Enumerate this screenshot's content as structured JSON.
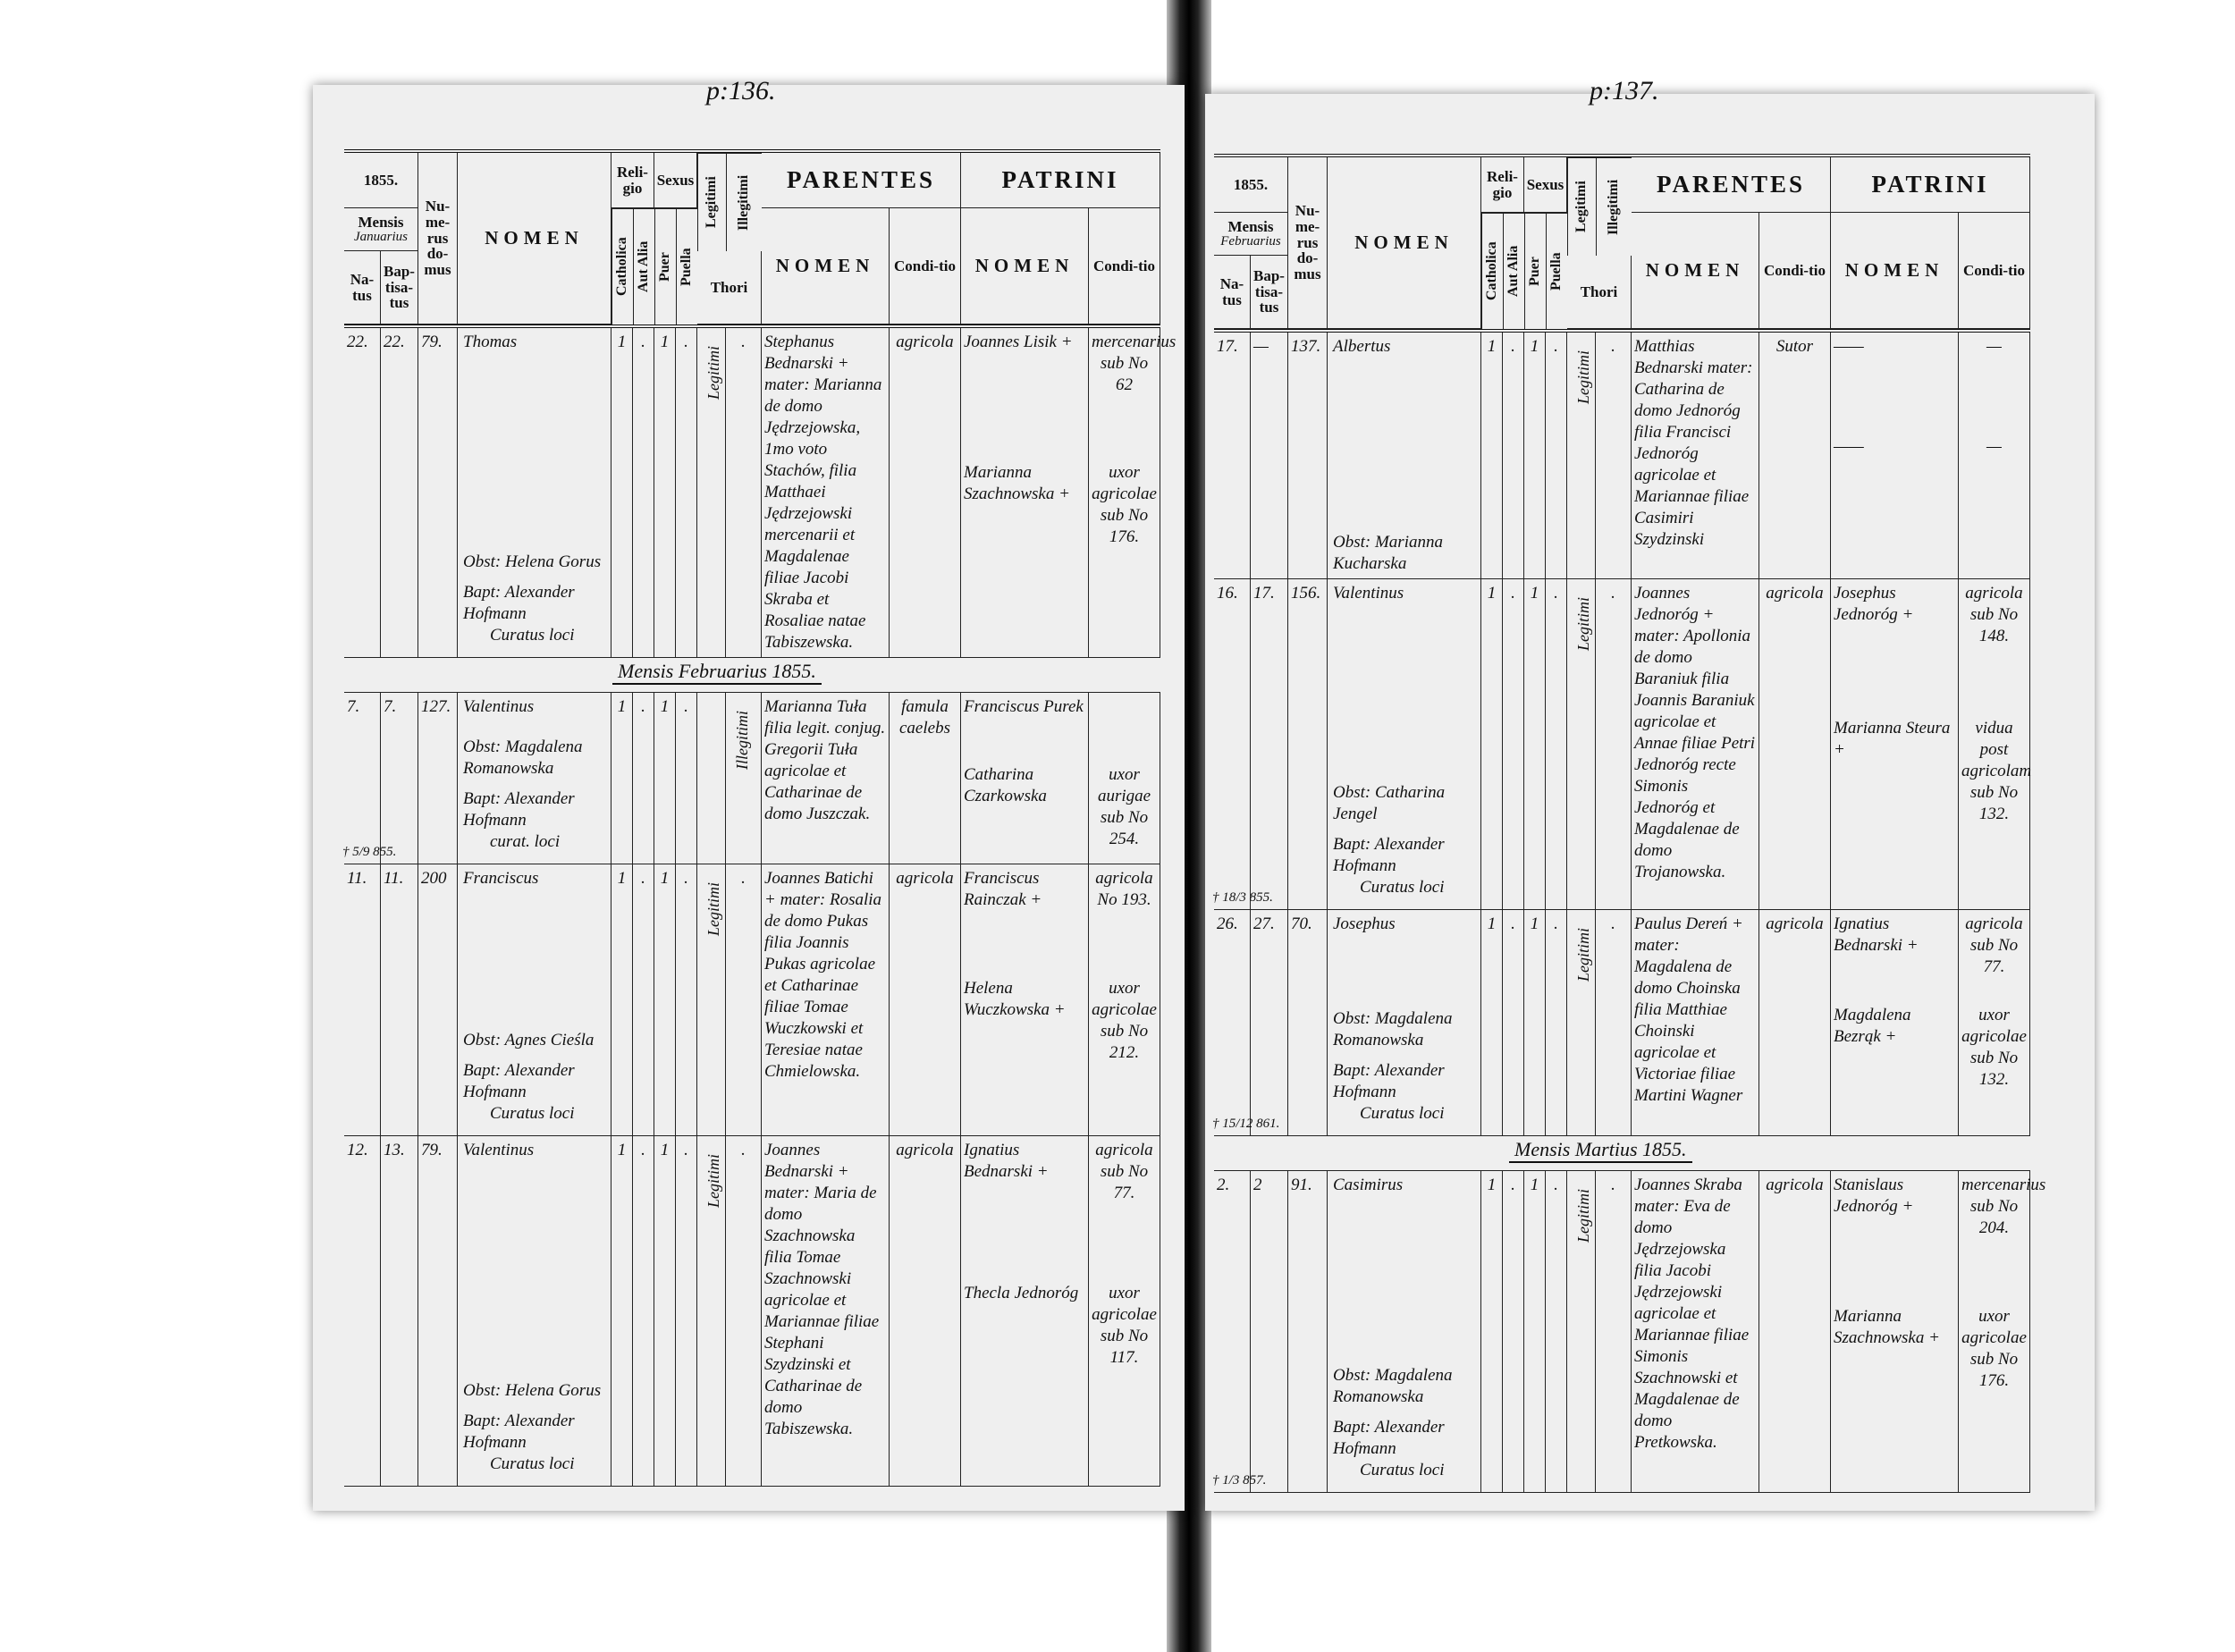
{
  "header": {
    "year": "1855.",
    "numerus": "Nu-me-rus do-mus",
    "nomen": "NOMEN",
    "religio": "Reli-gio",
    "catholica": "Catholica",
    "aut_alia": "Aut Alia",
    "sexus": "Sexus",
    "puer": "Puer",
    "puella": "Puella",
    "legitimi": "Legitimi",
    "illegitimi": "Illegitimi",
    "thori": "Thori",
    "parentes": "PARENTES",
    "patrini": "PATRINI",
    "sub_nomen": "NOMEN",
    "conditio": "Condi-tio",
    "mensis": "Mensis",
    "natus": "Na-tus",
    "baptisatus": "Bap-tisa-tus"
  },
  "pages": [
    {
      "page_number": "p:136.",
      "month": "Januarius",
      "rows": [
        {
          "natus": "22.",
          "baptisatus": "22.",
          "domus": "79.",
          "nomen": "Thomas",
          "catholica": "1",
          "aut_alia": ".",
          "puer": "1",
          "puella": ".",
          "legitimitas": "Legitimi",
          "illegitimi": ".",
          "parentes": "Stephanus Bednarski + mater: Marianna de domo Jędrzejowska, 1mo voto Stachów, filia Matthaei Jędrzejowski mercenarii et Magdalenae filiae Jacobi Skraba et Rosaliae natae Tabiszewska.",
          "parentes_conditio": "agricola",
          "patrinus1": "Joannes Lisik +",
          "conditio1": "mercenarius sub No 62",
          "patrinus2": "Marianna Szachnowska +",
          "conditio2": "uxor agricolae sub No 176.",
          "obstetrix": "Obst: Helena Gorus",
          "baptizans": "Bapt: Alexander Hofmann",
          "curatus": "Curatus loci",
          "margin": ""
        },
        {
          "section": "Mensis Februarius 1855."
        },
        {
          "natus": "7.",
          "baptisatus": "7.",
          "domus": "127.",
          "nomen": "Valentinus",
          "catholica": "1",
          "aut_alia": ".",
          "puer": "1",
          "puella": ".",
          "legitimitas": "",
          "illegitimi": "Illegitimi",
          "parentes": "Marianna Tuła filia legit. conjug. Gregorii Tuła agricolae et Catharinae de domo Juszczak.",
          "parentes_conditio": "famula caelebs",
          "patrinus1": "Franciscus Purek",
          "conditio1": "",
          "patrinus2": "Catharina Czarkowska",
          "conditio2": "uxor aurigae sub No 254.",
          "obstetrix": "Obst: Magdalena Romanowska",
          "baptizans": "Bapt: Alexander Hofmann",
          "curatus": "curat. loci",
          "margin": "† 5/9 855."
        },
        {
          "natus": "11.",
          "baptisatus": "11.",
          "domus": "200",
          "nomen": "Franciscus",
          "catholica": "1",
          "aut_alia": ".",
          "puer": "1",
          "puella": ".",
          "legitimitas": "Legitimi",
          "illegitimi": ".",
          "parentes": "Joannes Batichi + mater: Rosalia de domo Pukas filia Joannis Pukas agricolae et Catharinae filiae Tomae Wuczkowski et Teresiae natae Chmielowska.",
          "parentes_conditio": "agricola",
          "patrinus1": "Franciscus Rainczak +",
          "conditio1": "agricola No 193.",
          "patrinus2": "Helena Wuczkowska +",
          "conditio2": "uxor agricolae sub No 212.",
          "obstetrix": "Obst: Agnes Cieśla",
          "baptizans": "Bapt: Alexander Hofmann",
          "curatus": "Curatus loci",
          "margin": ""
        },
        {
          "natus": "12.",
          "baptisatus": "13.",
          "domus": "79.",
          "nomen": "Valentinus",
          "catholica": "1",
          "aut_alia": ".",
          "puer": "1",
          "puella": ".",
          "legitimitas": "Legitimi",
          "illegitimi": ".",
          "parentes": "Joannes Bednarski + mater: Maria de domo Szachnowska filia Tomae Szachnowski agricolae et Mariannae filiae Stephani Szydzinski et Catharinae de domo Tabiszewska.",
          "parentes_conditio": "agricola",
          "patrinus1": "Ignatius Bednarski +",
          "conditio1": "agricola sub No 77.",
          "patrinus2": "Thecla Jednoróg",
          "conditio2": "uxor agricolae sub No 117.",
          "obstetrix": "Obst: Helena Gorus",
          "baptizans": "Bapt: Alexander Hofmann",
          "curatus": "Curatus loci",
          "margin": ""
        }
      ]
    },
    {
      "page_number": "p:137.",
      "month": "Februarius",
      "rows": [
        {
          "natus": "17.",
          "baptisatus": "—",
          "domus": "137.",
          "nomen": "Albertus",
          "catholica": "1",
          "aut_alia": ".",
          "puer": "1",
          "puella": ".",
          "legitimitas": "Legitimi",
          "illegitimi": ".",
          "parentes": "Matthias Bednarski mater: Catharina de domo Jednoróg filia Francisci Jednoróg agricolae et Mariannae filiae Casimiri Szydzinski",
          "parentes_conditio": "Sutor",
          "patrinus1": "——",
          "conditio1": "—",
          "patrinus2": "——",
          "conditio2": "—",
          "obstetrix": "Obst: Marianna Kucharska",
          "baptizans": "",
          "curatus": "",
          "margin": ""
        },
        {
          "natus": "16.",
          "baptisatus": "17.",
          "domus": "156.",
          "nomen": "Valentinus",
          "catholica": "1",
          "aut_alia": ".",
          "puer": "1",
          "puella": ".",
          "legitimitas": "Legitimi",
          "illegitimi": ".",
          "parentes": "Joannes Jednoróg + mater: Apollonia de domo Baraniuk filia Joannis Baraniuk agricolae et Annae filiae Petri Jednoróg recte Simonis Jednoróg et Magdalenae de domo Trojanowska.",
          "parentes_conditio": "agricola",
          "patrinus1": "Josephus Jednoróg +",
          "conditio1": "agricola sub No 148.",
          "patrinus2": "Marianna Steura +",
          "conditio2": "vidua post agricolam sub No 132.",
          "obstetrix": "Obst: Catharina Jengel",
          "baptizans": "Bapt: Alexander Hofmann",
          "curatus": "Curatus loci",
          "margin": "† 18/3 855."
        },
        {
          "natus": "26.",
          "baptisatus": "27.",
          "domus": "70.",
          "nomen": "Josephus",
          "catholica": "1",
          "aut_alia": ".",
          "puer": "1",
          "puella": ".",
          "legitimitas": "Legitimi",
          "illegitimi": ".",
          "parentes": "Paulus Dereń + mater: Magdalena de domo Choinska filia Matthiae Choinski agricolae et Victoriae filiae Martini Wagner",
          "parentes_conditio": "agricola",
          "patrinus1": "Ignatius Bednarski +",
          "conditio1": "agricola sub No 77.",
          "patrinus2": "Magdalena Bezrąk +",
          "conditio2": "uxor agricolae sub No 132.",
          "obstetrix": "Obst: Magdalena Romanowska",
          "baptizans": "Bapt: Alexander Hofmann",
          "curatus": "Curatus loci",
          "margin": "† 15/12 861."
        },
        {
          "section": "Mensis Martius 1855."
        },
        {
          "natus": "2.",
          "baptisatus": "2",
          "domus": "91.",
          "nomen": "Casimirus",
          "catholica": "1",
          "aut_alia": ".",
          "puer": "1",
          "puella": ".",
          "legitimitas": "Legitimi",
          "illegitimi": ".",
          "parentes": "Joannes Skraba mater: Eva de domo Jędrzejowska filia Jacobi Jędrzejowski agricolae et Mariannae filiae Simonis Szachnowski et Magdalenae de domo Pretkowska.",
          "parentes_conditio": "agricola",
          "patrinus1": "Stanislaus Jednoróg +",
          "conditio1": "mercenarius sub No 204.",
          "patrinus2": "Marianna Szachnowska +",
          "conditio2": "uxor agricolae sub No 176.",
          "obstetrix": "Obst: Magdalena Romanowska",
          "baptizans": "Bapt: Alexander Hofmann",
          "curatus": "Curatus loci",
          "margin": "† 1/3 857."
        }
      ]
    }
  ]
}
